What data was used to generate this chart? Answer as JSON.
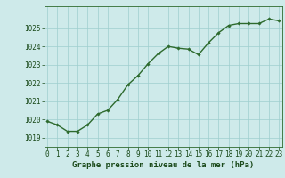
{
  "x": [
    0,
    1,
    2,
    3,
    4,
    5,
    6,
    7,
    8,
    9,
    10,
    11,
    12,
    13,
    14,
    15,
    16,
    17,
    18,
    19,
    20,
    21,
    22,
    23
  ],
  "y": [
    1019.9,
    1019.7,
    1019.35,
    1019.35,
    1019.7,
    1020.3,
    1020.5,
    1021.1,
    1021.9,
    1022.4,
    1023.05,
    1023.6,
    1024.0,
    1023.9,
    1023.85,
    1023.55,
    1024.2,
    1024.75,
    1025.15,
    1025.25,
    1025.25,
    1025.25,
    1025.5,
    1025.4
  ],
  "line_color": "#2d6a2d",
  "marker": "D",
  "marker_size": 1.8,
  "bg_color": "#ceeaea",
  "grid_color": "#9ecece",
  "axis_color": "#2d6a2d",
  "label_color": "#1a4a1a",
  "ylim": [
    1018.5,
    1026.2
  ],
  "xlim": [
    -0.3,
    23.3
  ],
  "yticks": [
    1019,
    1020,
    1021,
    1022,
    1023,
    1024,
    1025
  ],
  "xticks": [
    0,
    1,
    2,
    3,
    4,
    5,
    6,
    7,
    8,
    9,
    10,
    11,
    12,
    13,
    14,
    15,
    16,
    17,
    18,
    19,
    20,
    21,
    22,
    23
  ],
  "xlabel": "Graphe pression niveau de la mer (hPa)",
  "xlabel_fontsize": 6.5,
  "tick_fontsize": 5.5,
  "line_width": 1.0
}
